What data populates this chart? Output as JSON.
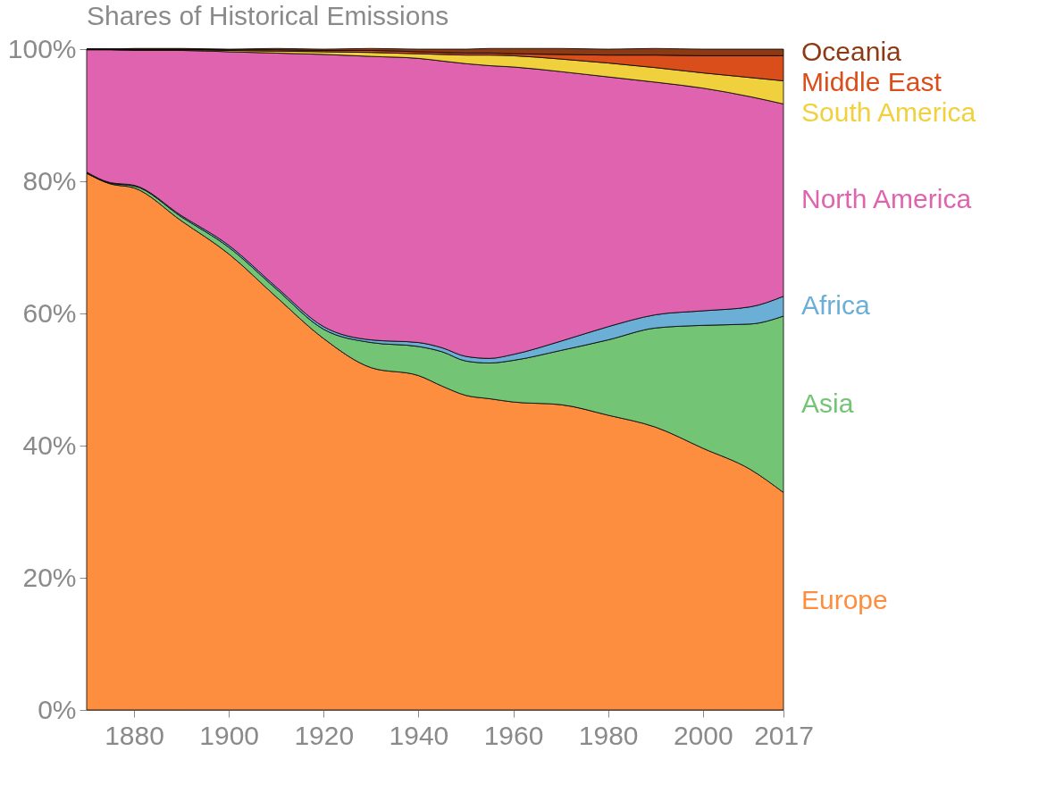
{
  "chart_data": {
    "type": "area",
    "stacked": true,
    "title": "Shares of Historical Emissions",
    "x": [
      1870,
      1875,
      1880,
      1890,
      1900,
      1910,
      1920,
      1930,
      1940,
      1945,
      1950,
      1955,
      1960,
      1970,
      1980,
      1990,
      2000,
      2010,
      2017
    ],
    "series": [
      {
        "name": "Europe",
        "color": "#fd8e3f",
        "values": [
          81.2,
          79.6,
          79.0,
          74.0,
          69.0,
          62.5,
          56.2,
          51.8,
          50.6,
          49.0,
          47.6,
          47.1,
          46.6,
          46.2,
          44.6,
          42.8,
          39.6,
          36.4,
          32.9
        ]
      },
      {
        "name": "Asia",
        "color": "#74c476",
        "values": [
          0.1,
          0.1,
          0.3,
          0.6,
          1.0,
          1.2,
          1.4,
          3.8,
          4.4,
          5.2,
          5.2,
          5.4,
          6.3,
          8.2,
          11.4,
          15.0,
          18.6,
          22.0,
          26.7
        ]
      },
      {
        "name": "Africa",
        "color": "#6baed6",
        "values": [
          0.1,
          0.1,
          0.1,
          0.2,
          0.3,
          0.3,
          0.4,
          0.4,
          0.6,
          0.6,
          0.7,
          0.7,
          0.9,
          1.4,
          2.0,
          2.0,
          2.2,
          2.6,
          3.0
        ]
      },
      {
        "name": "North America",
        "color": "#df63ae",
        "values": [
          18.5,
          20.1,
          20.4,
          25.0,
          29.3,
          35.4,
          41.2,
          42.9,
          43.0,
          43.4,
          44.3,
          44.3,
          43.5,
          40.8,
          37.8,
          35.2,
          33.7,
          31.8,
          29.1
        ]
      },
      {
        "name": "South America",
        "color": "#f0d03c",
        "values": [
          0.1,
          0.1,
          0.1,
          0.1,
          0.2,
          0.3,
          0.4,
          0.6,
          0.7,
          1.0,
          1.3,
          1.6,
          1.7,
          1.9,
          2.1,
          2.2,
          2.3,
          2.9,
          3.5
        ]
      },
      {
        "name": "Middle East",
        "color": "#d94e1a",
        "values": [
          0.0,
          0.0,
          0.1,
          0.1,
          0.1,
          0.2,
          0.2,
          0.3,
          0.3,
          0.3,
          0.3,
          0.3,
          0.3,
          0.7,
          1.2,
          1.9,
          2.6,
          3.3,
          3.8
        ]
      },
      {
        "name": "Oceania",
        "color": "#8c3a14",
        "values": [
          0.0,
          0.0,
          0.1,
          0.1,
          0.1,
          0.2,
          0.2,
          0.3,
          0.4,
          0.5,
          0.6,
          0.7,
          0.8,
          0.9,
          0.9,
          1.0,
          1.0,
          1.0,
          1.0
        ]
      }
    ],
    "xlim": [
      1870,
      2017
    ],
    "xticks": [
      1880,
      1900,
      1920,
      1940,
      1960,
      1980,
      2000,
      2017
    ],
    "ylim": [
      0,
      100
    ],
    "yticks": [
      {
        "value": 0,
        "label": "0%"
      },
      {
        "value": 20,
        "label": "20%"
      },
      {
        "value": 40,
        "label": "40%"
      },
      {
        "value": 60,
        "label": "60%"
      },
      {
        "value": 80,
        "label": "80%"
      },
      {
        "value": 100,
        "label": "100%"
      }
    ],
    "legend": false
  }
}
